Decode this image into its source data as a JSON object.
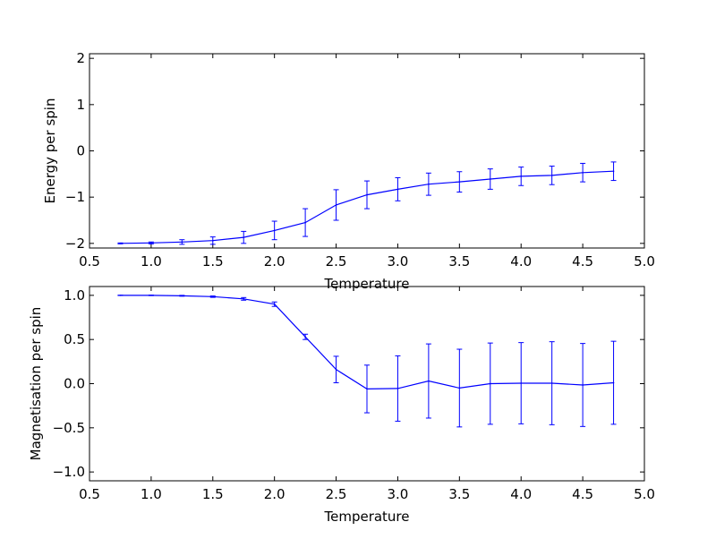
{
  "chart_data": [
    {
      "type": "line",
      "xlabel": "Temperature",
      "ylabel": "Energy per spin",
      "xlim": [
        0.5,
        5.0
      ],
      "ylim": [
        -2.1,
        2.1
      ],
      "xticks": [
        "0.5",
        "1.0",
        "1.5",
        "2.0",
        "2.5",
        "3.0",
        "3.5",
        "4.0",
        "4.5",
        "5.0"
      ],
      "yticks": [
        "−2",
        "−1",
        "0",
        "1",
        "2"
      ],
      "ytick_values": [
        -2,
        -1,
        0,
        1,
        2
      ],
      "grid": false,
      "color": "#0000ff",
      "series": [
        {
          "x": [
            0.75,
            1.0,
            1.25,
            1.5,
            1.75,
            2.0,
            2.25,
            2.5,
            2.75,
            3.0,
            3.25,
            3.5,
            3.75,
            4.0,
            4.25,
            4.5,
            4.75
          ],
          "y": [
            -2.0,
            -1.99,
            -1.97,
            -1.94,
            -1.87,
            -1.72,
            -1.55,
            -1.17,
            -0.95,
            -0.83,
            -0.72,
            -0.67,
            -0.61,
            -0.55,
            -0.53,
            -0.47,
            -0.44
          ],
          "yerr": [
            0.01,
            0.02,
            0.05,
            0.08,
            0.13,
            0.2,
            0.3,
            0.33,
            0.3,
            0.25,
            0.24,
            0.22,
            0.22,
            0.2,
            0.2,
            0.2,
            0.2
          ]
        }
      ]
    },
    {
      "type": "line",
      "xlabel": "Temperature",
      "ylabel": "Magnetisation per spin",
      "xlim": [
        0.5,
        5.0
      ],
      "ylim": [
        -1.1,
        1.1
      ],
      "xticks": [
        "0.5",
        "1.0",
        "1.5",
        "2.0",
        "2.5",
        "3.0",
        "3.5",
        "4.0",
        "4.5",
        "5.0"
      ],
      "yticks": [
        "1.0",
        "0.5",
        "0.0",
        "−0.5",
        "−1.0"
      ],
      "ytick_values": [
        1.0,
        0.5,
        0.0,
        -0.5,
        -1.0
      ],
      "grid": false,
      "color": "#0000ff",
      "series": [
        {
          "x": [
            0.75,
            1.0,
            1.25,
            1.5,
            1.75,
            2.0,
            2.25,
            2.5,
            2.75,
            3.0,
            3.25,
            3.5,
            3.75,
            4.0,
            4.25,
            4.5,
            4.75
          ],
          "y": [
            1.0,
            1.0,
            0.995,
            0.985,
            0.96,
            0.9,
            0.53,
            0.16,
            -0.06,
            -0.055,
            0.03,
            -0.05,
            0.0,
            0.005,
            0.005,
            -0.015,
            0.01
          ],
          "yerr": [
            0.002,
            0.003,
            0.005,
            0.008,
            0.015,
            0.025,
            0.03,
            0.15,
            0.27,
            0.37,
            0.42,
            0.44,
            0.46,
            0.46,
            0.47,
            0.47,
            0.47
          ]
        }
      ]
    }
  ]
}
